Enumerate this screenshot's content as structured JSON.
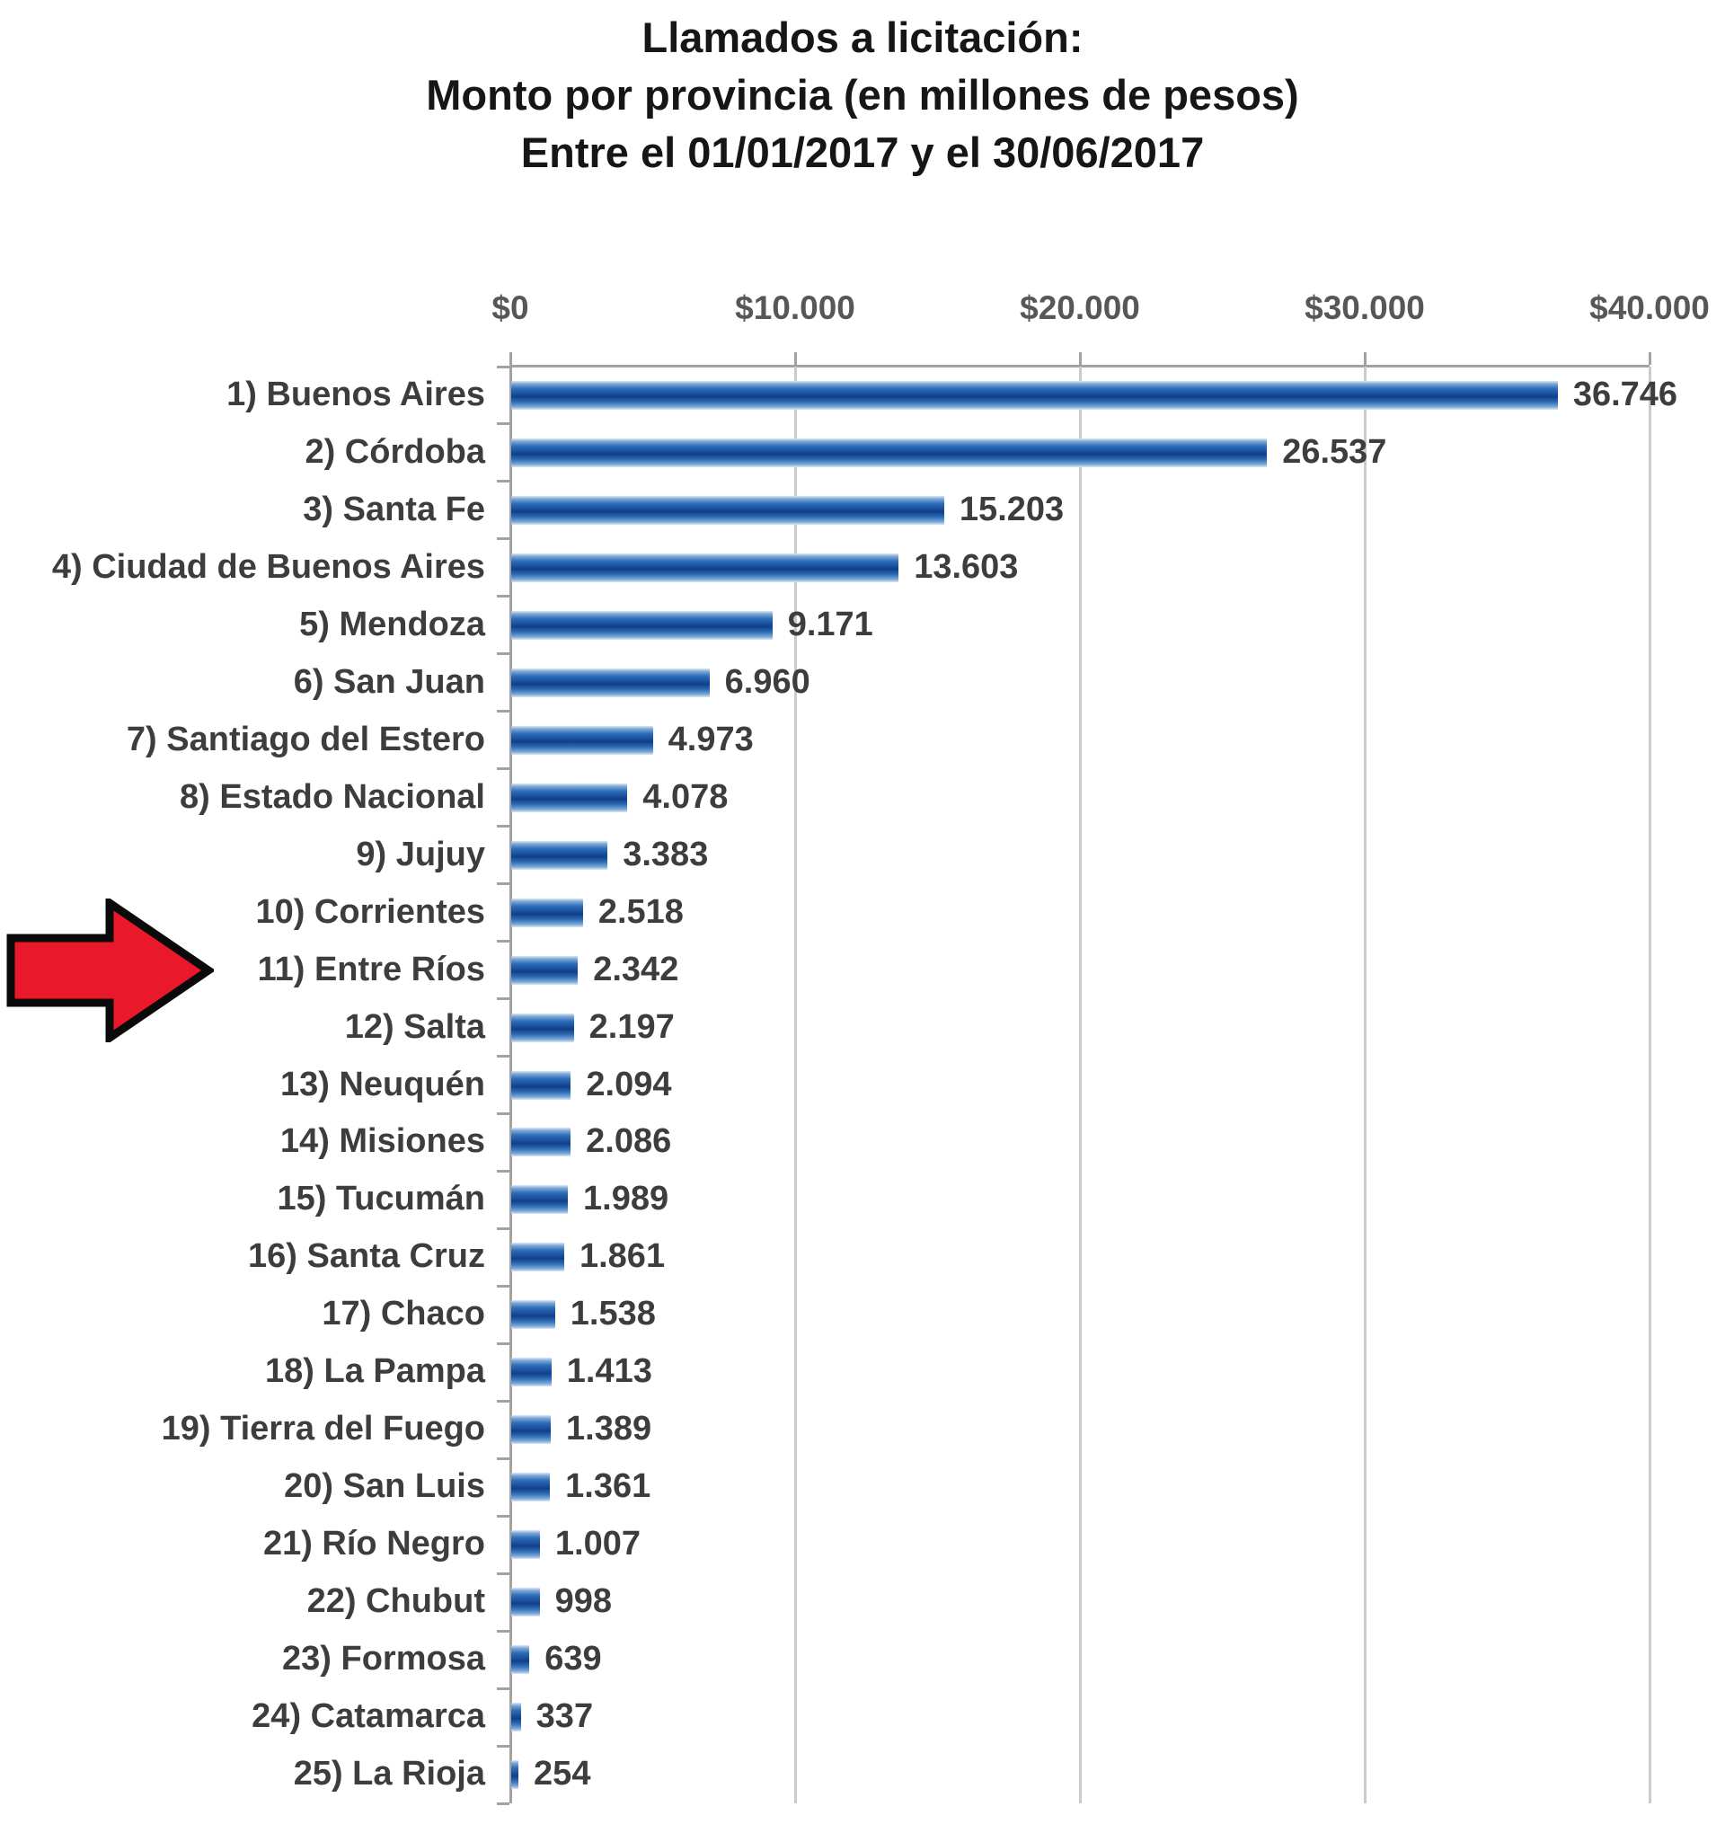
{
  "title": {
    "line1": "Llamados a licitación:",
    "line2": "Monto por provincia (en millones de pesos)",
    "line3": "Entre el 01/01/2017 y el 30/06/2017"
  },
  "chart_data": {
    "type": "bar",
    "orientation": "horizontal",
    "title": "Llamados a licitación: Monto por provincia (en millones de pesos) Entre el 01/01/2017 y el 30/06/2017",
    "x_axis": {
      "ticks": [
        "$0",
        "$10.000",
        "$20.000",
        "$30.000",
        "$40.000"
      ],
      "tick_values": [
        0,
        10000,
        20000,
        30000,
        40000
      ],
      "range": [
        0,
        40000
      ],
      "grid": true,
      "position": "top"
    },
    "categories": [
      "1) Buenos Aires",
      "2) Córdoba",
      "3) Santa Fe",
      "4) Ciudad de Buenos Aires",
      "5) Mendoza",
      "6) San Juan",
      "7) Santiago del Estero",
      "8) Estado Nacional",
      "9) Jujuy",
      "10) Corrientes",
      "11) Entre Ríos",
      "12) Salta",
      "13) Neuquén",
      "14) Misiones",
      "15) Tucumán",
      "16) Santa Cruz",
      "17) Chaco",
      "18) La Pampa",
      "19) Tierra del Fuego",
      "20) San Luis",
      "21) Río Negro",
      "22) Chubut",
      "23) Formosa",
      "24) Catamarca",
      "25) La Rioja"
    ],
    "values": [
      36746,
      26537,
      15203,
      13603,
      9171,
      6960,
      4973,
      4078,
      3383,
      2518,
      2342,
      2197,
      2094,
      2086,
      1989,
      1861,
      1538,
      1413,
      1389,
      1361,
      1007,
      998,
      639,
      337,
      254
    ],
    "value_labels": [
      "36.746",
      "26.537",
      "15.203",
      "13.603",
      "9.171",
      "6.960",
      "4.973",
      "4.078",
      "3.383",
      "2.518",
      "2.342",
      "2.197",
      "2.094",
      "2.086",
      "1.989",
      "1.861",
      "1.538",
      "1.413",
      "1.389",
      "1.361",
      "1.007",
      "998",
      "639",
      "337",
      "254"
    ],
    "bar_color": "#17509f",
    "grid_color": "#cbcbcb",
    "axis_color": "#a2a2a2",
    "text_color": "#3d3d3d",
    "legend": "none",
    "annotation": {
      "shape": "right-arrow",
      "points_to": "11) Entre Ríos",
      "fill": "#e9192b",
      "outline": "#0a0a0a"
    }
  }
}
